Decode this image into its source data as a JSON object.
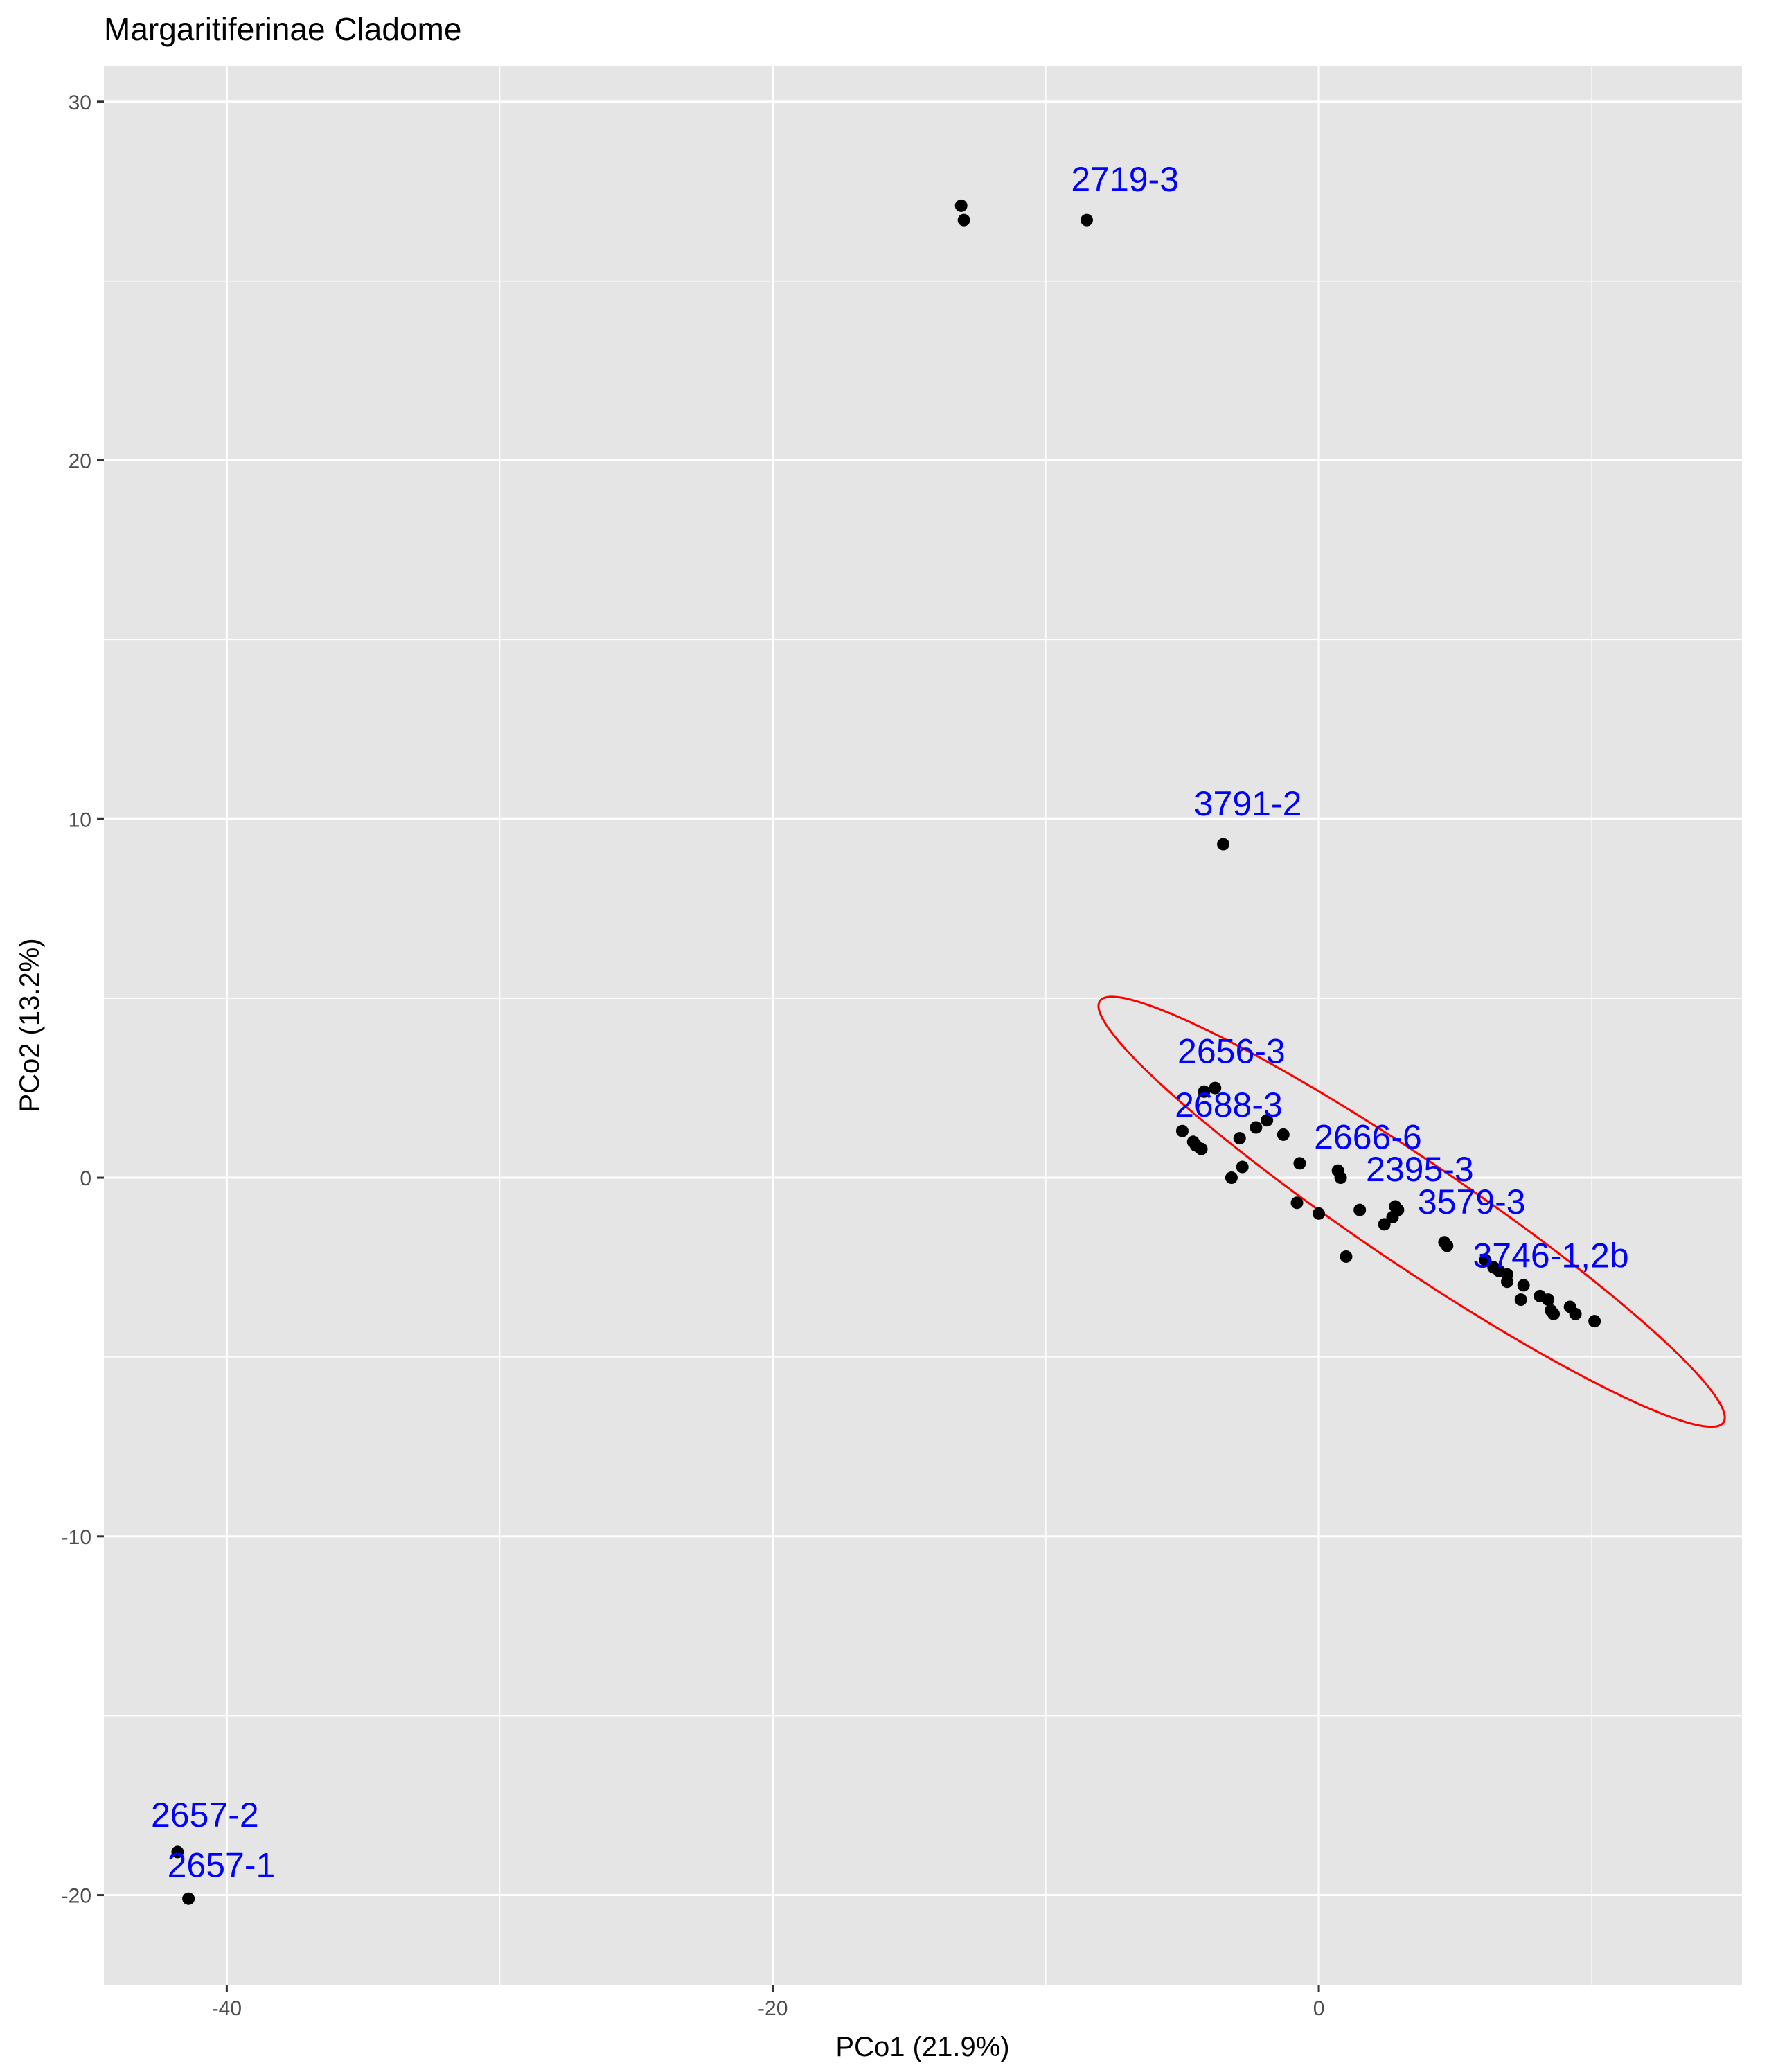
{
  "chart_data": {
    "type": "scatter",
    "title": "Margaritiferinae Cladome",
    "xlabel": "PCo1 (21.9%)",
    "ylabel": "PCo2 (13.2%)",
    "xlim": [
      -44.5,
      15.5
    ],
    "ylim": [
      -22.5,
      31
    ],
    "x_ticks": [
      -40,
      -20,
      0
    ],
    "y_ticks": [
      -20,
      -10,
      0,
      10,
      20,
      30
    ],
    "x_tick_labels": [
      "-40",
      "-20",
      "0"
    ],
    "y_tick_labels": [
      "-20",
      "-10",
      "0",
      "10",
      "20",
      "30"
    ],
    "grid": true,
    "panel_color": "#e5e5e5",
    "grid_color": "#ffffff",
    "point_color": "#000000",
    "label_color": "#0000ff",
    "ellipse_color": "#ff0000",
    "points": [
      {
        "x": -13.1,
        "y": 27.1
      },
      {
        "x": -13.0,
        "y": 26.7
      },
      {
        "x": -8.5,
        "y": 26.7
      },
      {
        "x": -3.5,
        "y": 9.3
      },
      {
        "x": -41.8,
        "y": -18.8
      },
      {
        "x": -41.4,
        "y": -20.1
      },
      {
        "x": -3.8,
        "y": 2.5
      },
      {
        "x": -4.2,
        "y": 2.4
      },
      {
        "x": -5.0,
        "y": 1.3
      },
      {
        "x": -4.6,
        "y": 1.0
      },
      {
        "x": -4.5,
        "y": 0.9
      },
      {
        "x": -4.3,
        "y": 0.8
      },
      {
        "x": -2.9,
        "y": 1.1
      },
      {
        "x": -2.3,
        "y": 1.4
      },
      {
        "x": -1.9,
        "y": 1.6
      },
      {
        "x": -1.3,
        "y": 1.2
      },
      {
        "x": -0.7,
        "y": 0.4
      },
      {
        "x": -2.8,
        "y": 0.3
      },
      {
        "x": -3.2,
        "y": 0.0
      },
      {
        "x": 0.7,
        "y": 0.2
      },
      {
        "x": 0.8,
        "y": 0.0
      },
      {
        "x": -0.8,
        "y": -0.7
      },
      {
        "x": 0.0,
        "y": -1.0
      },
      {
        "x": 1.5,
        "y": -0.9
      },
      {
        "x": 2.8,
        "y": -0.8
      },
      {
        "x": 2.9,
        "y": -0.9
      },
      {
        "x": 2.7,
        "y": -1.1
      },
      {
        "x": 2.4,
        "y": -1.3
      },
      {
        "x": 4.6,
        "y": -1.8
      },
      {
        "x": 4.7,
        "y": -1.9
      },
      {
        "x": 1.0,
        "y": -2.2
      },
      {
        "x": 6.1,
        "y": -2.3
      },
      {
        "x": 6.4,
        "y": -2.5
      },
      {
        "x": 6.6,
        "y": -2.6
      },
      {
        "x": 6.9,
        "y": -2.7
      },
      {
        "x": 6.9,
        "y": -2.9
      },
      {
        "x": 7.5,
        "y": -3.0
      },
      {
        "x": 8.1,
        "y": -3.3
      },
      {
        "x": 8.4,
        "y": -3.4
      },
      {
        "x": 7.4,
        "y": -3.4
      },
      {
        "x": 8.5,
        "y": -3.7
      },
      {
        "x": 8.6,
        "y": -3.8
      },
      {
        "x": 9.2,
        "y": -3.6
      },
      {
        "x": 9.4,
        "y": -3.8
      },
      {
        "x": 10.1,
        "y": -4.0
      }
    ],
    "labels": [
      {
        "text": "2719-3",
        "x": -7.1,
        "y": 27.5
      },
      {
        "text": "3791-2",
        "x": -2.6,
        "y": 10.1
      },
      {
        "text": "2656-3",
        "x": -3.2,
        "y": 3.2
      },
      {
        "text": "2688-3",
        "x": -3.3,
        "y": 1.7
      },
      {
        "text": "2666-6",
        "x": 1.8,
        "y": 0.8
      },
      {
        "text": "2395-3",
        "x": 3.7,
        "y": -0.1
      },
      {
        "text": "3579-3",
        "x": 5.6,
        "y": -1.0
      },
      {
        "text": "3746-1,2b",
        "x": 8.5,
        "y": -2.5
      },
      {
        "text": "2657-2",
        "x": -40.8,
        "y": -18.1
      },
      {
        "text": "2657-1",
        "x": -40.2,
        "y": -19.5
      }
    ],
    "ellipse": {
      "cx": 3.4,
      "cy": -0.95,
      "rx": 12.85,
      "ry": 1.55,
      "angle_deg": 27
    }
  }
}
